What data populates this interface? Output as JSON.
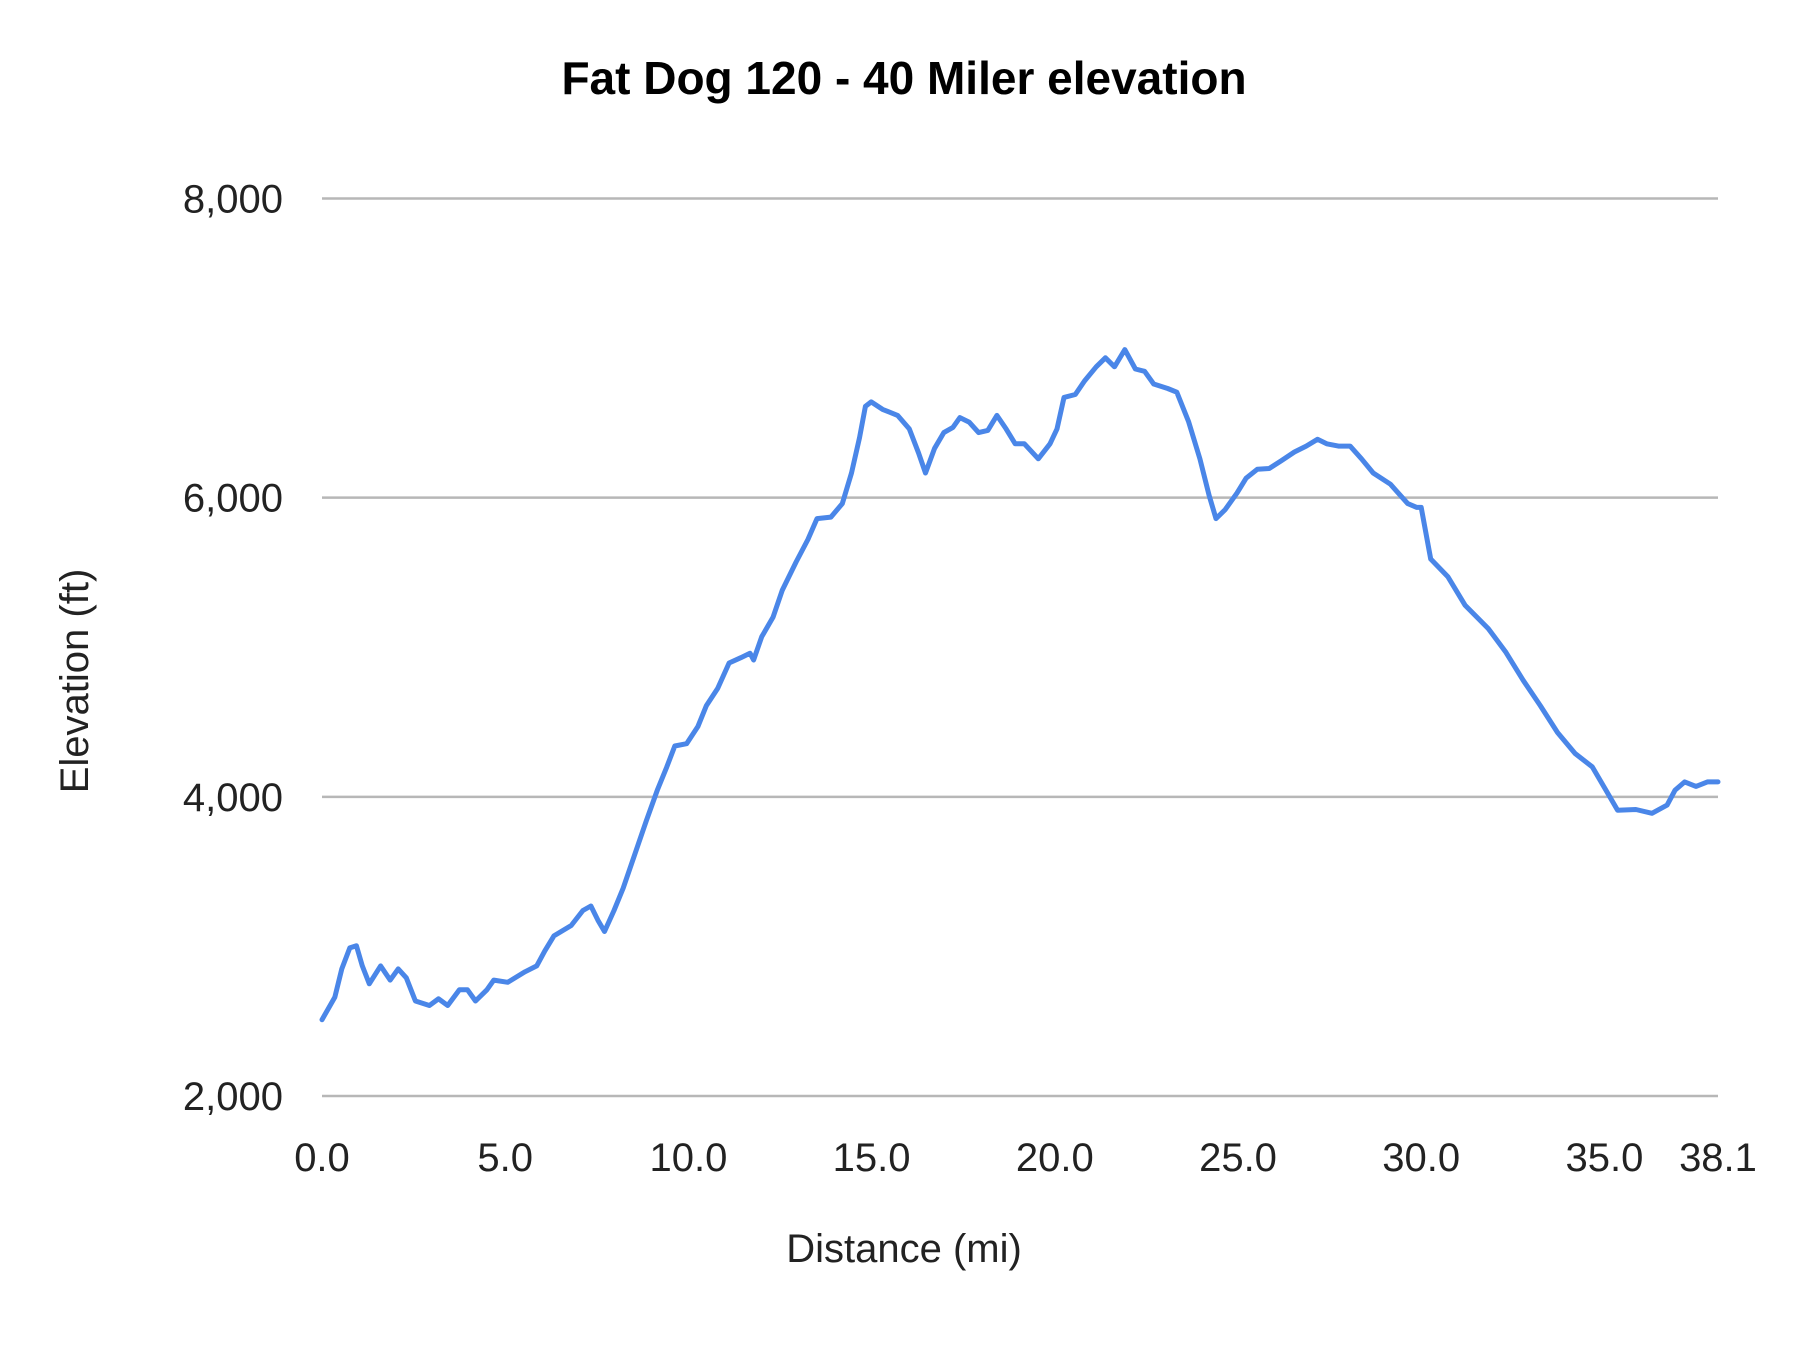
{
  "chart_data": {
    "type": "line",
    "title": "Fat Dog 120 - 40 Miler elevation",
    "xlabel": "Distance (mi)",
    "ylabel": "Elevation (ft)",
    "xlim": [
      0,
      38.1
    ],
    "ylim": [
      2000,
      8000
    ],
    "x_ticks": [
      0,
      5,
      10,
      15,
      20,
      25,
      30,
      35,
      38.1
    ],
    "x_tick_labels": [
      "0.0",
      "5.0",
      "10.0",
      "15.0",
      "20.0",
      "25.0",
      "30.0",
      "35.0",
      "38.1"
    ],
    "y_ticks": [
      2000,
      4000,
      6000,
      8000
    ],
    "y_tick_labels": [
      "2,000",
      "4,000",
      "6,000",
      "8,000"
    ],
    "grid": "horizontal",
    "legend": "none",
    "colors": {
      "line": "#4a86e8",
      "grid": "#b7b7b7"
    },
    "series": [
      {
        "x": [
          0,
          0.35,
          0.54,
          0.76,
          0.94,
          1.1,
          1.29,
          1.6,
          1.86,
          2.08,
          2.3,
          2.55,
          2.93,
          3.18,
          3.43,
          3.75,
          3.97,
          4.19,
          4.5,
          4.69,
          5.07,
          5.54,
          5.86,
          6.08,
          6.33,
          6.8,
          7.12,
          7.34,
          7.53,
          7.71,
          7.97,
          8.22,
          8.53,
          8.85,
          9.16,
          9.41,
          9.63,
          9.95,
          10.26,
          10.49,
          10.8,
          11.11,
          11.43,
          11.68,
          11.78,
          12.0,
          12.31,
          12.56,
          12.94,
          13.26,
          13.51,
          13.89,
          14.2,
          14.45,
          14.67,
          14.83,
          14.99,
          15.3,
          15.71,
          16.03,
          16.28,
          16.47,
          16.72,
          16.97,
          17.22,
          17.41,
          17.66,
          17.92,
          18.17,
          18.42,
          18.67,
          18.92,
          19.17,
          19.55,
          19.87,
          20.06,
          20.25,
          20.56,
          20.81,
          21.13,
          21.38,
          21.63,
          21.91,
          22.2,
          22.45,
          22.7,
          23.08,
          23.33,
          23.65,
          23.96,
          24.21,
          24.4,
          24.65,
          24.97,
          25.22,
          25.53,
          25.85,
          26.17,
          26.54,
          26.86,
          27.17,
          27.42,
          27.74,
          28.06,
          28.37,
          28.69,
          29.16,
          29.63,
          29.88,
          30.0,
          30.26,
          30.73,
          31.2,
          31.83,
          32.3,
          32.78,
          33.25,
          33.72,
          34.2,
          34.67,
          35.04,
          35.36,
          35.86,
          36.3,
          36.71,
          36.93,
          37.19,
          37.5,
          37.81,
          38.1
        ],
        "y": [
          2510,
          2660,
          2850,
          2990,
          3005,
          2870,
          2750,
          2870,
          2775,
          2850,
          2790,
          2635,
          2605,
          2650,
          2605,
          2710,
          2710,
          2635,
          2710,
          2775,
          2760,
          2830,
          2870,
          2970,
          3070,
          3140,
          3240,
          3270,
          3175,
          3100,
          3240,
          3390,
          3610,
          3840,
          4050,
          4200,
          4340,
          4355,
          4470,
          4610,
          4725,
          4895,
          4930,
          4960,
          4915,
          5070,
          5200,
          5380,
          5570,
          5720,
          5860,
          5870,
          5960,
          6165,
          6400,
          6610,
          6640,
          6590,
          6550,
          6460,
          6300,
          6165,
          6330,
          6435,
          6470,
          6535,
          6505,
          6435,
          6450,
          6550,
          6460,
          6360,
          6360,
          6260,
          6360,
          6460,
          6670,
          6690,
          6780,
          6875,
          6935,
          6875,
          6990,
          6860,
          6845,
          6760,
          6730,
          6705,
          6510,
          6260,
          6015,
          5860,
          5920,
          6030,
          6130,
          6190,
          6195,
          6245,
          6305,
          6345,
          6390,
          6360,
          6345,
          6345,
          6260,
          6165,
          6090,
          5960,
          5935,
          5935,
          5590,
          5470,
          5280,
          5125,
          4970,
          4780,
          4610,
          4430,
          4290,
          4200,
          4045,
          3910,
          3915,
          3890,
          3945,
          4045,
          4100,
          4070,
          4100,
          4100
        ]
      }
    ]
  }
}
